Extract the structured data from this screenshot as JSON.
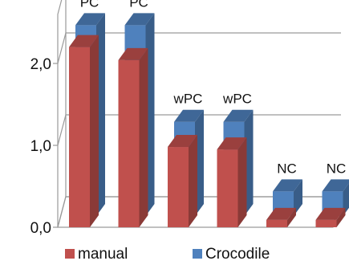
{
  "chart_data": {
    "type": "bar",
    "style": "3d-clustered",
    "categories": [
      "",
      "",
      "",
      "",
      "",
      ""
    ],
    "series": [
      {
        "name": "manual",
        "color": "#C0504D",
        "values": [
          2.2,
          2.04,
          0.98,
          0.95,
          0.09,
          0.09
        ]
      },
      {
        "name": "Crocodile",
        "color": "#4F81BD",
        "values": [
          2.33,
          2.33,
          1.15,
          1.15,
          0.3,
          0.3
        ]
      }
    ],
    "data_labels": [
      "PC",
      "PC",
      "wPC",
      "wPC",
      "NC",
      "NC"
    ],
    "y_ticks": [
      "0,0",
      "1,0",
      "2,0"
    ],
    "y_tick_values": [
      0,
      1,
      2
    ],
    "ylim": [
      0,
      2.6
    ],
    "grid": true,
    "legend_position": "bottom"
  }
}
